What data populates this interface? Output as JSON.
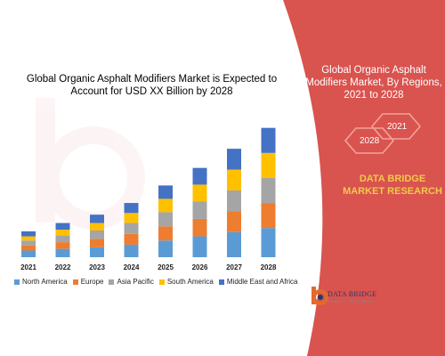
{
  "chart_title": "Global Organic Asphalt Modifiers Market is Expected to Account for USD XX Billion by 2028",
  "side_panel": {
    "title": "Global Organic Asphalt Modifiers Market, By Regions, 2021 to 2028",
    "hex_year_top": "2021",
    "hex_year_bottom": "2028",
    "brand_text": "DATA BRIDGE MARKET RESEARCH",
    "logo_name": "DATA BRIDGE",
    "logo_tagline": "MARKET RESEARCH"
  },
  "colors": {
    "panel_red": "#d9534f",
    "brand_orange": "#e26a2c",
    "hex_border": "#f1a49a"
  },
  "chart_data": {
    "type": "bar",
    "stacked": true,
    "categories": [
      "2021",
      "2022",
      "2023",
      "2024",
      "2025",
      "2026",
      "2027",
      "2028"
    ],
    "series": [
      {
        "name": "North America",
        "color": "#5b9bd5",
        "values": [
          8,
          10,
          12,
          15,
          20,
          25,
          30,
          35
        ]
      },
      {
        "name": "Europe",
        "color": "#ed7d31",
        "values": [
          6,
          8,
          10,
          13,
          17,
          21,
          25,
          30
        ]
      },
      {
        "name": "Asia Pacific",
        "color": "#a5a5a5",
        "values": [
          6,
          8,
          10,
          13,
          17,
          21,
          25,
          30
        ]
      },
      {
        "name": "South America",
        "color": "#ffc000",
        "values": [
          5,
          7,
          9,
          12,
          16,
          20,
          25,
          30
        ]
      },
      {
        "name": "Middle East and Africa",
        "color": "#4472c4",
        "values": [
          6,
          8,
          10,
          12,
          16,
          20,
          25,
          30
        ]
      }
    ],
    "legend_position": "bottom",
    "grid": false,
    "ylim": [
      0,
      160
    ]
  }
}
